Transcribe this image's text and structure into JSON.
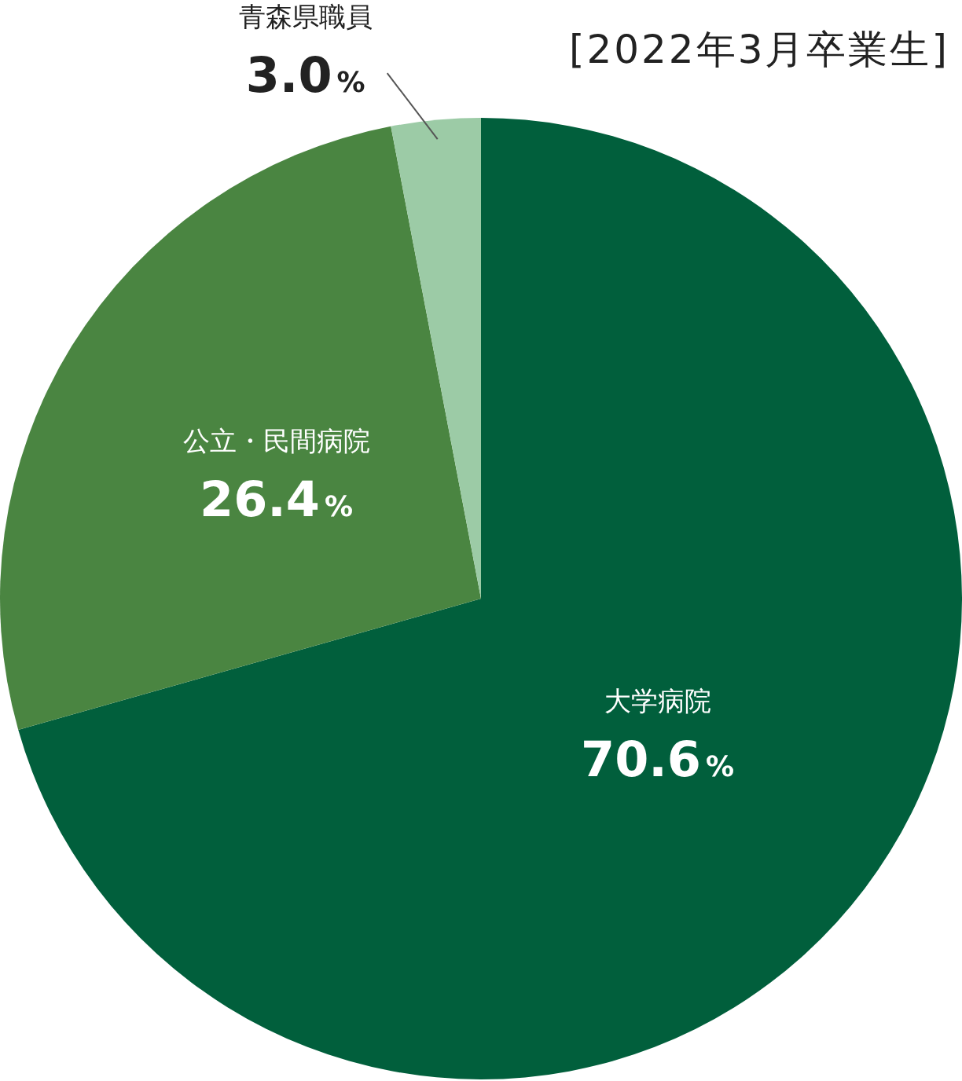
{
  "chart_data": {
    "type": "pie",
    "title": "[2022年3月卒業生]",
    "categories": [
      "大学病院",
      "公立・民間病院",
      "青森県職員"
    ],
    "values": [
      70.6,
      26.4,
      3.0
    ],
    "colors": [
      "#015f3c",
      "#4a8541",
      "#9ccba6"
    ],
    "value_labels": [
      "70.6%",
      "26.4%",
      "3.0%"
    ],
    "legend": false
  }
}
